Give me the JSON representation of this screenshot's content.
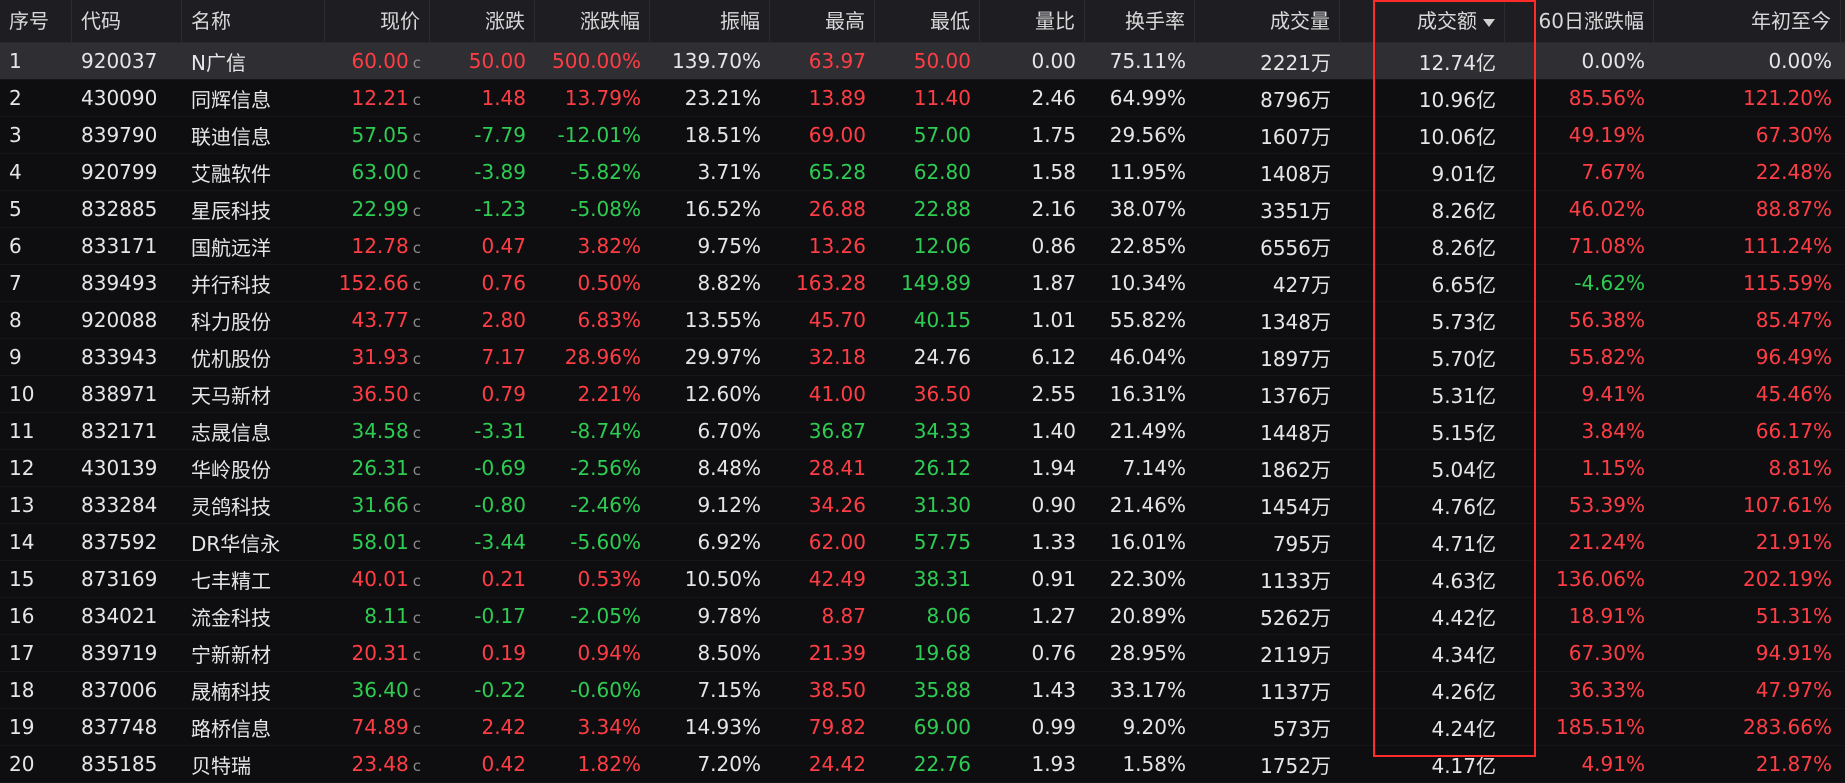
{
  "columns": [
    "序号",
    "代码",
    "名称",
    "现价",
    "涨跌",
    "涨跌幅",
    "振幅",
    "最高",
    "最低",
    "量比",
    "换手率",
    "成交量",
    "成交额",
    "60日涨跌幅",
    "年初至今"
  ],
  "price_suffix": "c",
  "colors": {
    "up": "#ff3d44",
    "down": "#2ecc52",
    "highlight": "#ff2b2b"
  },
  "sort_icon": "sort-desc-icon",
  "rows": [
    {
      "idx": "1",
      "code": "920037",
      "name": "N广信",
      "price": "60.00",
      "chg": "50.00",
      "pct": "500.00%",
      "amp": "139.70%",
      "high": "63.97",
      "low": "50.00",
      "vr": "0.00",
      "turn": "75.11%",
      "vol": "2221万",
      "amt": "12.74亿",
      "d60": "0.00%",
      "ytd": "0.00%",
      "cp": "up",
      "cc": "up",
      "ch": "up",
      "cl": "up",
      "c60": "flat",
      "cy": "flat"
    },
    {
      "idx": "2",
      "code": "430090",
      "name": "同辉信息",
      "price": "12.21",
      "chg": "1.48",
      "pct": "13.79%",
      "amp": "23.21%",
      "high": "13.89",
      "low": "11.40",
      "vr": "2.46",
      "turn": "64.99%",
      "vol": "8796万",
      "amt": "10.96亿",
      "d60": "85.56%",
      "ytd": "121.20%",
      "cp": "up",
      "cc": "up",
      "ch": "up",
      "cl": "up",
      "c60": "up",
      "cy": "up"
    },
    {
      "idx": "3",
      "code": "839790",
      "name": "联迪信息",
      "price": "57.05",
      "chg": "-7.79",
      "pct": "-12.01%",
      "amp": "18.51%",
      "high": "69.00",
      "low": "57.00",
      "vr": "1.75",
      "turn": "29.56%",
      "vol": "1607万",
      "amt": "10.06亿",
      "d60": "49.19%",
      "ytd": "67.30%",
      "cp": "down",
      "cc": "down",
      "ch": "up",
      "cl": "down",
      "c60": "up",
      "cy": "up"
    },
    {
      "idx": "4",
      "code": "920799",
      "name": "艾融软件",
      "price": "63.00",
      "chg": "-3.89",
      "pct": "-5.82%",
      "amp": "3.71%",
      "high": "65.28",
      "low": "62.80",
      "vr": "1.58",
      "turn": "11.95%",
      "vol": "1408万",
      "amt": "9.01亿",
      "d60": "7.67%",
      "ytd": "22.48%",
      "cp": "down",
      "cc": "down",
      "ch": "down",
      "cl": "down",
      "c60": "up",
      "cy": "up"
    },
    {
      "idx": "5",
      "code": "832885",
      "name": "星辰科技",
      "price": "22.99",
      "chg": "-1.23",
      "pct": "-5.08%",
      "amp": "16.52%",
      "high": "26.88",
      "low": "22.88",
      "vr": "2.16",
      "turn": "38.07%",
      "vol": "3351万",
      "amt": "8.26亿",
      "d60": "46.02%",
      "ytd": "88.87%",
      "cp": "down",
      "cc": "down",
      "ch": "up",
      "cl": "down",
      "c60": "up",
      "cy": "up"
    },
    {
      "idx": "6",
      "code": "833171",
      "name": "国航远洋",
      "price": "12.78",
      "chg": "0.47",
      "pct": "3.82%",
      "amp": "9.75%",
      "high": "13.26",
      "low": "12.06",
      "vr": "0.86",
      "turn": "22.85%",
      "vol": "6556万",
      "amt": "8.26亿",
      "d60": "71.08%",
      "ytd": "111.24%",
      "cp": "up",
      "cc": "up",
      "ch": "up",
      "cl": "down",
      "c60": "up",
      "cy": "up"
    },
    {
      "idx": "7",
      "code": "839493",
      "name": "并行科技",
      "price": "152.66",
      "chg": "0.76",
      "pct": "0.50%",
      "amp": "8.82%",
      "high": "163.28",
      "low": "149.89",
      "vr": "1.87",
      "turn": "10.34%",
      "vol": "427万",
      "amt": "6.65亿",
      "d60": "-4.62%",
      "ytd": "115.59%",
      "cp": "up",
      "cc": "up",
      "ch": "up",
      "cl": "down",
      "c60": "down",
      "cy": "up"
    },
    {
      "idx": "8",
      "code": "920088",
      "name": "科力股份",
      "price": "43.77",
      "chg": "2.80",
      "pct": "6.83%",
      "amp": "13.55%",
      "high": "45.70",
      "low": "40.15",
      "vr": "1.01",
      "turn": "55.82%",
      "vol": "1348万",
      "amt": "5.73亿",
      "d60": "56.38%",
      "ytd": "85.47%",
      "cp": "up",
      "cc": "up",
      "ch": "up",
      "cl": "down",
      "c60": "up",
      "cy": "up"
    },
    {
      "idx": "9",
      "code": "833943",
      "name": "优机股份",
      "price": "31.93",
      "chg": "7.17",
      "pct": "28.96%",
      "amp": "29.97%",
      "high": "32.18",
      "low": "24.76",
      "vr": "6.12",
      "turn": "46.04%",
      "vol": "1897万",
      "amt": "5.70亿",
      "d60": "55.82%",
      "ytd": "96.49%",
      "cp": "up",
      "cc": "up",
      "ch": "up",
      "cl": "flat",
      "c60": "up",
      "cy": "up"
    },
    {
      "idx": "10",
      "code": "838971",
      "name": "天马新材",
      "price": "36.50",
      "chg": "0.79",
      "pct": "2.21%",
      "amp": "12.60%",
      "high": "41.00",
      "low": "36.50",
      "vr": "2.55",
      "turn": "16.31%",
      "vol": "1376万",
      "amt": "5.31亿",
      "d60": "9.41%",
      "ytd": "45.46%",
      "cp": "up",
      "cc": "up",
      "ch": "up",
      "cl": "up",
      "c60": "up",
      "cy": "up"
    },
    {
      "idx": "11",
      "code": "832171",
      "name": "志晟信息",
      "price": "34.58",
      "chg": "-3.31",
      "pct": "-8.74%",
      "amp": "6.70%",
      "high": "36.87",
      "low": "34.33",
      "vr": "1.40",
      "turn": "21.49%",
      "vol": "1448万",
      "amt": "5.15亿",
      "d60": "3.84%",
      "ytd": "66.17%",
      "cp": "down",
      "cc": "down",
      "ch": "down",
      "cl": "down",
      "c60": "up",
      "cy": "up"
    },
    {
      "idx": "12",
      "code": "430139",
      "name": "华岭股份",
      "price": "26.31",
      "chg": "-0.69",
      "pct": "-2.56%",
      "amp": "8.48%",
      "high": "28.41",
      "low": "26.12",
      "vr": "1.94",
      "turn": "7.14%",
      "vol": "1862万",
      "amt": "5.04亿",
      "d60": "1.15%",
      "ytd": "8.81%",
      "cp": "down",
      "cc": "down",
      "ch": "up",
      "cl": "down",
      "c60": "up",
      "cy": "up"
    },
    {
      "idx": "13",
      "code": "833284",
      "name": "灵鸽科技",
      "price": "31.66",
      "chg": "-0.80",
      "pct": "-2.46%",
      "amp": "9.12%",
      "high": "34.26",
      "low": "31.30",
      "vr": "0.90",
      "turn": "21.46%",
      "vol": "1454万",
      "amt": "4.76亿",
      "d60": "53.39%",
      "ytd": "107.61%",
      "cp": "down",
      "cc": "down",
      "ch": "up",
      "cl": "down",
      "c60": "up",
      "cy": "up"
    },
    {
      "idx": "14",
      "code": "837592",
      "name": "DR华信永",
      "price": "58.01",
      "chg": "-3.44",
      "pct": "-5.60%",
      "amp": "6.92%",
      "high": "62.00",
      "low": "57.75",
      "vr": "1.33",
      "turn": "16.01%",
      "vol": "795万",
      "amt": "4.71亿",
      "d60": "21.24%",
      "ytd": "21.91%",
      "cp": "down",
      "cc": "down",
      "ch": "up",
      "cl": "down",
      "c60": "up",
      "cy": "up"
    },
    {
      "idx": "15",
      "code": "873169",
      "name": "七丰精工",
      "price": "40.01",
      "chg": "0.21",
      "pct": "0.53%",
      "amp": "10.50%",
      "high": "42.49",
      "low": "38.31",
      "vr": "0.91",
      "turn": "22.30%",
      "vol": "1133万",
      "amt": "4.63亿",
      "d60": "136.06%",
      "ytd": "202.19%",
      "cp": "up",
      "cc": "up",
      "ch": "up",
      "cl": "down",
      "c60": "up",
      "cy": "up"
    },
    {
      "idx": "16",
      "code": "834021",
      "name": "流金科技",
      "price": "8.11",
      "chg": "-0.17",
      "pct": "-2.05%",
      "amp": "9.78%",
      "high": "8.87",
      "low": "8.06",
      "vr": "1.27",
      "turn": "20.89%",
      "vol": "5262万",
      "amt": "4.42亿",
      "d60": "18.91%",
      "ytd": "51.31%",
      "cp": "down",
      "cc": "down",
      "ch": "up",
      "cl": "down",
      "c60": "up",
      "cy": "up"
    },
    {
      "idx": "17",
      "code": "839719",
      "name": "宁新新材",
      "price": "20.31",
      "chg": "0.19",
      "pct": "0.94%",
      "amp": "8.50%",
      "high": "21.39",
      "low": "19.68",
      "vr": "0.76",
      "turn": "28.95%",
      "vol": "2119万",
      "amt": "4.34亿",
      "d60": "67.30%",
      "ytd": "94.91%",
      "cp": "up",
      "cc": "up",
      "ch": "up",
      "cl": "down",
      "c60": "up",
      "cy": "up"
    },
    {
      "idx": "18",
      "code": "837006",
      "name": "晟楠科技",
      "price": "36.40",
      "chg": "-0.22",
      "pct": "-0.60%",
      "amp": "7.15%",
      "high": "38.50",
      "low": "35.88",
      "vr": "1.43",
      "turn": "33.17%",
      "vol": "1137万",
      "amt": "4.26亿",
      "d60": "36.33%",
      "ytd": "47.97%",
      "cp": "down",
      "cc": "down",
      "ch": "up",
      "cl": "down",
      "c60": "up",
      "cy": "up"
    },
    {
      "idx": "19",
      "code": "837748",
      "name": "路桥信息",
      "price": "74.89",
      "chg": "2.42",
      "pct": "3.34%",
      "amp": "14.93%",
      "high": "79.82",
      "low": "69.00",
      "vr": "0.99",
      "turn": "9.20%",
      "vol": "573万",
      "amt": "4.24亿",
      "d60": "185.51%",
      "ytd": "283.66%",
      "cp": "up",
      "cc": "up",
      "ch": "up",
      "cl": "down",
      "c60": "up",
      "cy": "up"
    },
    {
      "idx": "20",
      "code": "835185",
      "name": "贝特瑞",
      "price": "23.48",
      "chg": "0.42",
      "pct": "1.82%",
      "amp": "7.20%",
      "high": "24.42",
      "low": "22.76",
      "vr": "1.93",
      "turn": "1.58%",
      "vol": "1752万",
      "amt": "4.17亿",
      "d60": "4.91%",
      "ytd": "21.87%",
      "cp": "up",
      "cc": "up",
      "ch": "up",
      "cl": "down",
      "c60": "up",
      "cy": "up"
    }
  ]
}
